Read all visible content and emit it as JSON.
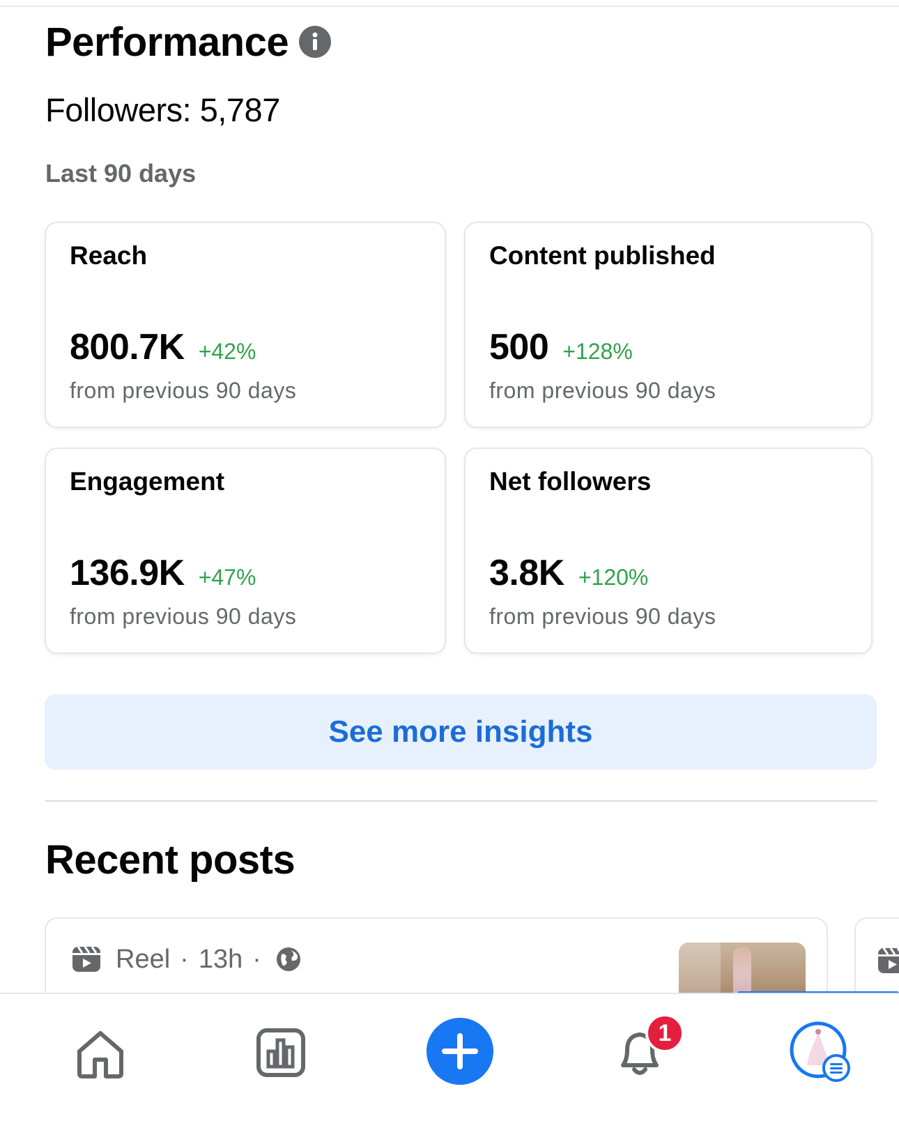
{
  "performance": {
    "title": "Performance",
    "followers": "Followers: 5,787",
    "period": "Last 90 days"
  },
  "metrics": [
    {
      "title": "Reach",
      "value": "800.7K",
      "delta": "+42%",
      "subtitle": "from previous 90 days"
    },
    {
      "title": "Content published",
      "value": "500",
      "delta": "+128%",
      "subtitle": "from previous 90 days"
    },
    {
      "title": "Engagement",
      "value": "136.9K",
      "delta": "+47%",
      "subtitle": "from previous 90 days"
    },
    {
      "title": "Net followers",
      "value": "3.8K",
      "delta": "+120%",
      "subtitle": "from previous 90 days"
    }
  ],
  "see_more_label": "See more insights",
  "recent_posts": {
    "title": "Recent posts",
    "first_post": {
      "type": "Reel",
      "age": "13h",
      "separator": "·"
    }
  },
  "nav": {
    "notifications_badge": "1",
    "icons": [
      "home-icon",
      "insights-icon",
      "create-icon",
      "notifications-icon",
      "profile-avatar"
    ]
  },
  "colors": {
    "accent": "#1877f2",
    "positive": "#31a24c",
    "badge": "#e41e3f",
    "link": "#1b6dd6",
    "secondary_text": "#65676b"
  }
}
